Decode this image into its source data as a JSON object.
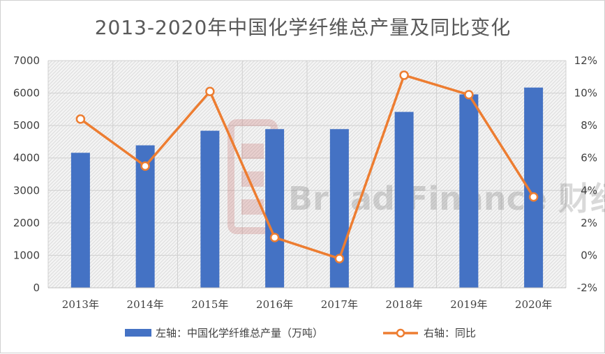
{
  "chart_data": {
    "type": "bar",
    "title": "2013-2020年中国化学纤维总产量及同比变化",
    "categories": [
      "2013年",
      "2014年",
      "2015年",
      "2016年",
      "2017年",
      "2018年",
      "2019年",
      "2020年"
    ],
    "series": [
      {
        "name": "左轴：中国化学纤维总产量（万吨）",
        "type": "bar",
        "axis": "left",
        "color": "#4472c4",
        "values": [
          4160,
          4390,
          4840,
          4890,
          4890,
          5420,
          5960,
          6170
        ]
      },
      {
        "name": "右轴：同比",
        "type": "line",
        "axis": "right",
        "color": "#ed7d31",
        "unit": "%",
        "values": [
          8.4,
          5.5,
          10.1,
          1.1,
          -0.2,
          11.1,
          9.9,
          3.6
        ]
      }
    ],
    "y_left": {
      "min": 0,
      "max": 7000,
      "step": 1000,
      "ticks": [
        "0",
        "1000",
        "2000",
        "3000",
        "4000",
        "5000",
        "6000",
        "7000"
      ]
    },
    "y_right": {
      "min": -2,
      "max": 12,
      "step": 2,
      "ticks": [
        "-2%",
        "0%",
        "2%",
        "4%",
        "6%",
        "8%",
        "10%",
        "12%"
      ]
    },
    "grid": true,
    "legend_position": "bottom"
  },
  "watermark": {
    "text": "Bread Finance 财经",
    "color": "#c0504d"
  }
}
